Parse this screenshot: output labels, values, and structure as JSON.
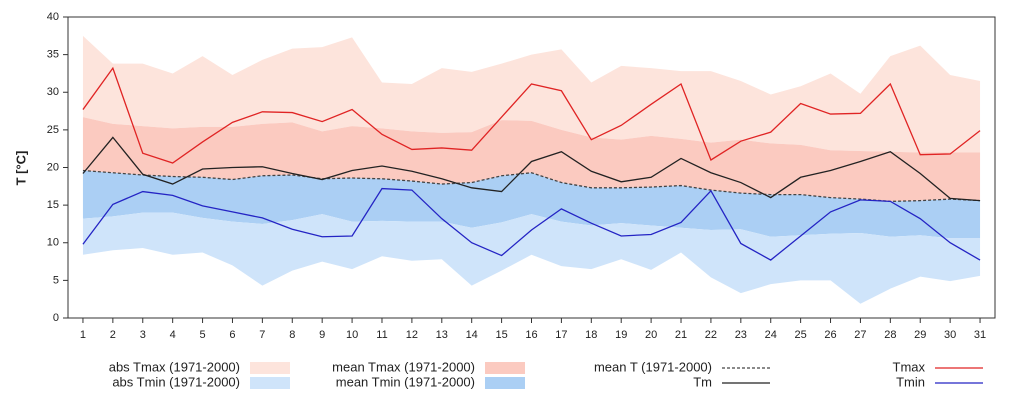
{
  "chart_data": {
    "type": "line",
    "ylabel": "T [°C]",
    "x": [
      1,
      2,
      3,
      4,
      5,
      6,
      7,
      8,
      9,
      10,
      11,
      12,
      13,
      14,
      15,
      16,
      17,
      18,
      19,
      20,
      21,
      22,
      23,
      24,
      25,
      26,
      27,
      28,
      29,
      30,
      31
    ],
    "xlim": [
      0.5,
      31.5
    ],
    "xticks": [
      1,
      2,
      3,
      4,
      5,
      6,
      7,
      8,
      9,
      10,
      11,
      12,
      13,
      14,
      15,
      16,
      17,
      18,
      19,
      20,
      21,
      22,
      23,
      24,
      25,
      26,
      27,
      28,
      29,
      30,
      31
    ],
    "ylim": [
      0,
      40
    ],
    "yticks": [
      0,
      5,
      10,
      15,
      20,
      25,
      30,
      35,
      40
    ],
    "series": [
      {
        "name": "abs Tmax (1971-2000)",
        "color": "#fde4dc",
        "fill": true,
        "values": [
          37.5,
          33.8,
          33.8,
          32.5,
          34.8,
          32.3,
          34.3,
          35.8,
          36.0,
          37.3,
          31.3,
          31.1,
          33.2,
          32.7,
          33.8,
          35.0,
          35.7,
          31.3,
          33.5,
          33.2,
          32.8,
          32.8,
          31.5,
          29.7,
          30.8,
          32.5,
          29.8,
          34.8,
          36.2,
          32.3,
          31.5
        ]
      },
      {
        "name": "abs Tmin (1971-2000)",
        "color": "#cfe4fa",
        "fill": true,
        "values": [
          8.4,
          9.0,
          9.3,
          8.4,
          8.7,
          7.0,
          4.3,
          6.3,
          7.5,
          6.5,
          8.2,
          7.6,
          7.8,
          4.3,
          6.3,
          8.4,
          6.9,
          6.5,
          7.8,
          6.4,
          8.7,
          5.4,
          3.3,
          4.5,
          5.0,
          5.0,
          1.9,
          3.9,
          5.5,
          4.9,
          5.6
        ]
      },
      {
        "name": "mean Tmax (1971-2000)",
        "color": "#fbcac0",
        "fill": true,
        "values": [
          26.7,
          25.8,
          25.5,
          25.2,
          25.4,
          25.4,
          25.8,
          26.0,
          24.8,
          25.5,
          25.2,
          24.8,
          24.6,
          24.7,
          26.3,
          26.2,
          25.0,
          24.0,
          23.7,
          24.2,
          23.8,
          23.3,
          23.7,
          23.2,
          23.0,
          22.3,
          22.2,
          22.1,
          22.0,
          22.0,
          22.0
        ]
      },
      {
        "name": "mean Tmin (1971-2000)",
        "color": "#abcff4",
        "fill": true,
        "values": [
          13.2,
          13.5,
          14.0,
          14.0,
          13.3,
          12.8,
          12.5,
          13.0,
          13.8,
          12.8,
          12.9,
          12.8,
          12.8,
          12.0,
          12.7,
          13.8,
          12.8,
          12.3,
          12.6,
          12.3,
          12.0,
          11.7,
          11.8,
          10.8,
          11.0,
          11.2,
          11.3,
          10.8,
          11.0,
          10.6,
          10.6
        ]
      },
      {
        "name": "mean T (1971-2000)",
        "color": "#444444",
        "dashed": true,
        "values": [
          19.6,
          19.3,
          19.0,
          18.8,
          18.7,
          18.4,
          18.9,
          19.0,
          18.5,
          18.6,
          18.5,
          18.2,
          17.8,
          18.0,
          18.9,
          19.3,
          18.0,
          17.3,
          17.3,
          17.4,
          17.6,
          17.0,
          16.6,
          16.4,
          16.4,
          16.0,
          15.8,
          15.5,
          15.6,
          15.8,
          15.6
        ]
      },
      {
        "name": "Tm",
        "color": "#222222",
        "values": [
          19.2,
          24.0,
          19.1,
          17.8,
          19.8,
          20.0,
          20.1,
          19.2,
          18.4,
          19.6,
          20.2,
          19.5,
          18.5,
          17.3,
          16.8,
          20.8,
          22.1,
          19.5,
          18.1,
          18.7,
          21.2,
          19.3,
          18.0,
          16.0,
          18.7,
          19.6,
          20.8,
          22.1,
          19.2,
          15.9,
          15.6
        ]
      },
      {
        "name": "Tmax",
        "color": "#e02424",
        "values": [
          27.7,
          33.2,
          21.9,
          20.6,
          23.4,
          26.0,
          27.4,
          27.3,
          26.1,
          27.7,
          24.4,
          22.4,
          22.6,
          22.3,
          26.7,
          31.1,
          30.2,
          23.7,
          25.6,
          28.4,
          31.1,
          21.0,
          23.5,
          24.7,
          28.5,
          27.1,
          27.2,
          31.1,
          21.7,
          21.8,
          24.9
        ]
      },
      {
        "name": "Tmin",
        "color": "#2424c4",
        "values": [
          9.8,
          15.1,
          16.8,
          16.3,
          14.9,
          14.1,
          13.3,
          11.8,
          10.8,
          10.9,
          17.2,
          17.0,
          13.2,
          10.0,
          8.3,
          11.7,
          14.5,
          12.6,
          10.9,
          11.1,
          12.7,
          16.9,
          9.9,
          7.7,
          10.9,
          14.1,
          15.7,
          15.5,
          13.2,
          10.0,
          7.7
        ]
      }
    ]
  }
}
